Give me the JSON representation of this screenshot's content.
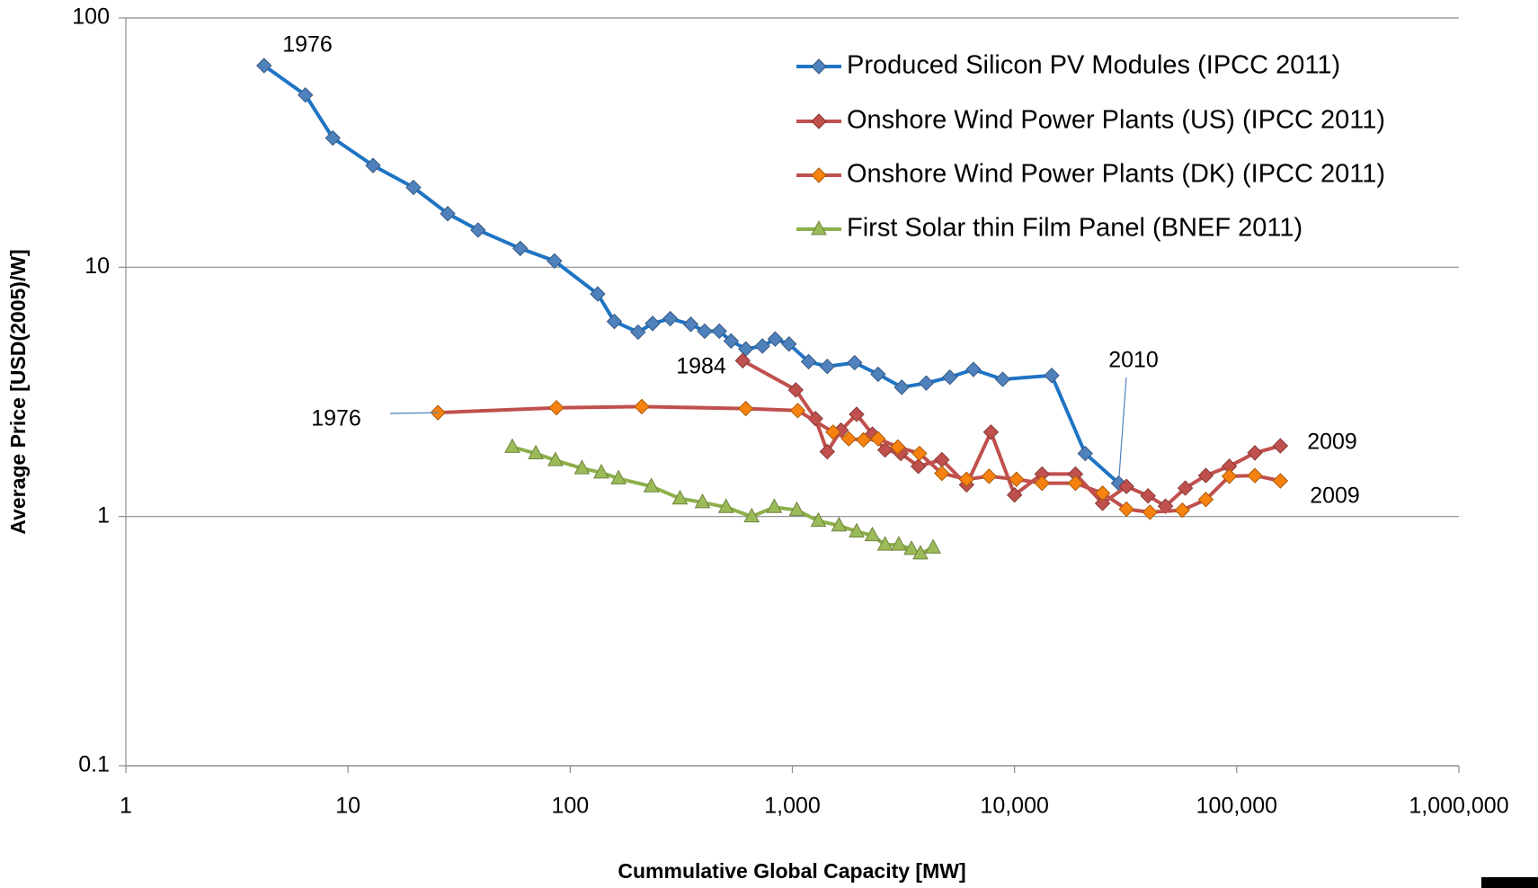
{
  "chart_data": {
    "type": "line",
    "x_label": "Cummulative Global Capacity [MW]",
    "y_label": "Average Price [USD(2005)/W]",
    "x_log": true,
    "y_log": true,
    "grid": true,
    "legend": "upper right",
    "xlim": [
      1,
      1000000
    ],
    "ylim": [
      0.1,
      100
    ],
    "xticks": [
      1,
      10,
      100,
      {
        "value": 1000,
        "label": "1,000"
      },
      {
        "value": 10000,
        "label": "10,000"
      },
      {
        "value": 100000,
        "label": "100,000"
      },
      {
        "value": 1000000,
        "label": "1,000,000"
      }
    ],
    "yticks": [
      0.1,
      1,
      10,
      100
    ],
    "annotations": [
      "1976",
      "1984",
      "1976",
      "2010",
      "2009",
      "2009"
    ],
    "series": [
      {
        "name": "Produced Silicon PV Modules (IPCC 2011)",
        "color": "#1f74c4",
        "marker_color": "#4f81bd",
        "marker": "diamond",
        "x": [
          4.19,
          6.43,
          8.54,
          12.96,
          19.7,
          28.1,
          38.5,
          59.6,
          85,
          133,
          158,
          202,
          235,
          282,
          349,
          403,
          469,
          530,
          617,
          733,
          837,
          966,
          1183,
          1435,
          1907,
          2432,
          3106,
          4005,
          5113,
          6530,
          8850,
          14700,
          20800,
          29400
        ],
        "values": [
          64.4,
          49.1,
          33.0,
          25.6,
          20.9,
          16.4,
          14.1,
          11.9,
          10.6,
          7.81,
          6.06,
          5.49,
          5.95,
          6.22,
          5.9,
          5.54,
          5.54,
          5.06,
          4.7,
          4.83,
          5.15,
          4.92,
          4.18,
          4.0,
          4.14,
          3.72,
          3.3,
          3.43,
          3.62,
          3.89,
          3.55,
          3.68,
          1.79,
          1.36
        ]
      },
      {
        "name": "Onshore Wind Power Plants (US) (IPCC 2011)",
        "color": "#c0504d",
        "marker_color": "#c0504d",
        "marker": "diamond",
        "x": [
          598,
          1036,
          1270,
          1435,
          1655,
          1946,
          2291,
          2614,
          3075,
          3690,
          4710,
          6083,
          7830,
          10000,
          13300,
          18800,
          24900,
          31900,
          39900,
          47800,
          58700,
          72600,
          92600,
          120700,
          157200
        ],
        "values": [
          4.22,
          3.22,
          2.47,
          1.82,
          2.22,
          2.57,
          2.14,
          1.85,
          1.79,
          1.59,
          1.69,
          1.34,
          2.18,
          1.22,
          1.48,
          1.48,
          1.13,
          1.32,
          1.21,
          1.1,
          1.3,
          1.46,
          1.59,
          1.8,
          1.92
        ]
      },
      {
        "name": "Onshore Wind Power Plants (DK) (IPCC 2011)",
        "color": "#c0504d",
        "marker_color": "#f7820f",
        "marker": "diamond",
        "x": [
          25.4,
          86.7,
          210,
          617,
          1057,
          1525,
          1794,
          2091,
          2432,
          2983,
          3733,
          4710,
          6083,
          7680,
          10200,
          13300,
          18800,
          24900,
          31900,
          40700,
          56900,
          72600,
          92600,
          120700,
          157200
        ],
        "values": [
          2.61,
          2.73,
          2.76,
          2.71,
          2.66,
          2.18,
          2.05,
          2.03,
          2.05,
          1.9,
          1.79,
          1.49,
          1.41,
          1.45,
          1.41,
          1.36,
          1.36,
          1.24,
          1.07,
          1.04,
          1.06,
          1.17,
          1.45,
          1.46,
          1.39
        ]
      },
      {
        "name": "First Solar thin Film Panel  (BNEF 2011)",
        "color": "#8db04a",
        "marker_color": "#9bbb59",
        "marker": "triangle",
        "x": [
          54.9,
          70.0,
          85.8,
          113,
          138,
          165,
          232,
          312,
          394,
          503,
          656,
          829,
          1047,
          1309,
          1622,
          1946,
          2291,
          2614,
          3013,
          3437,
          3770,
          4300
        ],
        "values": [
          1.9,
          1.79,
          1.68,
          1.56,
          1.5,
          1.42,
          1.32,
          1.18,
          1.14,
          1.09,
          1.0,
          1.09,
          1.06,
          0.96,
          0.92,
          0.87,
          0.84,
          0.77,
          0.77,
          0.74,
          0.71,
          0.75
        ]
      }
    ]
  }
}
